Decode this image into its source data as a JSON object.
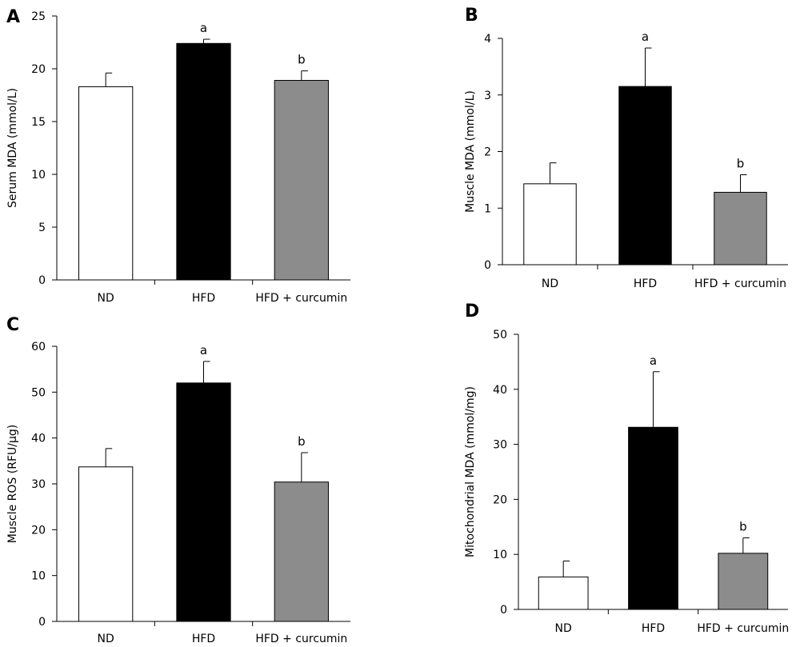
{
  "chart_data": [
    {
      "panel": "A",
      "type": "bar",
      "ylabel": "Serum MDA (mmol/L)",
      "ylim": [
        0,
        25
      ],
      "yticks": [
        0,
        5,
        10,
        15,
        20,
        25
      ],
      "categories": [
        "ND",
        "HFD",
        "HFD + curcumin"
      ],
      "values": [
        18.3,
        22.4,
        18.9
      ],
      "errors": [
        1.3,
        0.4,
        0.9
      ],
      "annotations": [
        "",
        "a",
        "b"
      ],
      "colors": [
        "#ffffff",
        "#000000",
        "#8c8c8c"
      ]
    },
    {
      "panel": "B",
      "type": "bar",
      "ylabel": "Muscle MDA (mmol/L)",
      "ylim": [
        0,
        4
      ],
      "yticks": [
        0,
        1,
        2,
        3,
        4
      ],
      "categories": [
        "ND",
        "HFD",
        "HFD + curcumin"
      ],
      "values": [
        1.43,
        3.15,
        1.28
      ],
      "errors": [
        0.37,
        0.68,
        0.31
      ],
      "annotations": [
        "",
        "a",
        "b"
      ],
      "colors": [
        "#ffffff",
        "#000000",
        "#8c8c8c"
      ]
    },
    {
      "panel": "C",
      "type": "bar",
      "ylabel": "Muscle ROS (RFU/μg)",
      "ylim": [
        0,
        60
      ],
      "yticks": [
        0,
        10,
        20,
        30,
        40,
        50,
        60
      ],
      "categories": [
        "ND",
        "HFD",
        "HFD + curcumin"
      ],
      "values": [
        33.7,
        52.0,
        30.4
      ],
      "errors": [
        4.0,
        4.7,
        6.4
      ],
      "annotations": [
        "",
        "a",
        "b"
      ],
      "colors": [
        "#ffffff",
        "#000000",
        "#8c8c8c"
      ]
    },
    {
      "panel": "D",
      "type": "bar",
      "ylabel": "Mitochondrial MDA (mmol/mg)",
      "ylim": [
        0,
        50
      ],
      "yticks": [
        0,
        10,
        20,
        30,
        40,
        50
      ],
      "categories": [
        "ND",
        "HFD",
        "HFD + curcumin"
      ],
      "values": [
        5.9,
        33.1,
        10.2
      ],
      "errors": [
        2.9,
        10.1,
        2.8
      ],
      "annotations": [
        "",
        "a",
        "b"
      ],
      "colors": [
        "#ffffff",
        "#000000",
        "#8c8c8c"
      ]
    }
  ]
}
